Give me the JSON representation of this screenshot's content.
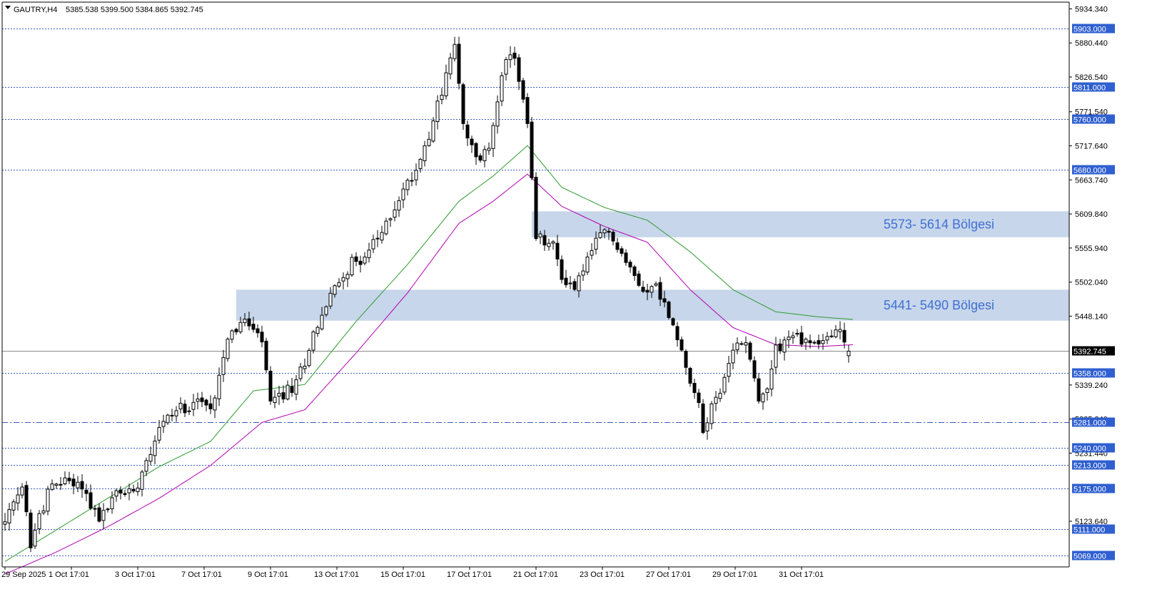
{
  "header": {
    "symbol_label": "GAUTRY,H4",
    "ohlc": "5385.538 5399.500 5384.865 5392.745"
  },
  "colors": {
    "background": "#ffffff",
    "bull_candle": "#ffffff",
    "bear_candle": "#000000",
    "ma_fast": "#2e9a2e",
    "ma_slow": "#b000b0",
    "level_line": "#3a5bbf",
    "level_label_bg": "#2f5fd0",
    "zone_fill": "#c7d6ea",
    "zone_text": "#3f6fd4",
    "price_line": "#8a8a8a",
    "current_label_bg": "#000000"
  },
  "chart_data": {
    "type": "candlestick",
    "symbol": "GAUTRY",
    "timeframe": "H4",
    "ylim": [
      5051.4,
      5945.0
    ],
    "y_ticks": [
      "5934.340",
      "5880.440",
      "5826.540",
      "5771.540",
      "5717.640",
      "5663.740",
      "5609.840",
      "5555.940",
      "5502.040",
      "5448.140",
      "5339.240",
      "5285.340",
      "5231.440",
      "5123.640"
    ],
    "x_ticks": [
      "29 Sep 2025",
      "1 Oct 17:01",
      "3 Oct 17:01",
      "7 Oct 17:01",
      "9 Oct 17:01",
      "13 Oct 17:01",
      "15 Oct 17:01",
      "17 Oct 17:01",
      "21 Oct 17:01",
      "23 Oct 17:01",
      "27 Oct 17:01",
      "29 Oct 17:01",
      "31 Oct 17:01"
    ],
    "levels": [
      {
        "value": "5903.000",
        "style": "dotted"
      },
      {
        "value": "5811.000",
        "style": "dotted"
      },
      {
        "value": "5760.000",
        "style": "dotted"
      },
      {
        "value": "5680.000",
        "style": "dotted"
      },
      {
        "value": "5358.000",
        "style": "dotted"
      },
      {
        "value": "5281.000",
        "style": "dashdot"
      },
      {
        "value": "5240.000",
        "style": "dotted"
      },
      {
        "value": "5213.000",
        "style": "dotted"
      },
      {
        "value": "5175.000",
        "style": "dotted"
      },
      {
        "value": "5111.000",
        "style": "dotted"
      },
      {
        "value": "5069.000",
        "style": "dotted"
      }
    ],
    "current_price": "5392.745",
    "zones": [
      {
        "label": "5573- 5614 Bölgesi",
        "low": 5573,
        "high": 5614,
        "start_index": 123
      },
      {
        "label": "5441- 5490 Bölgesi",
        "low": 5441,
        "high": 5490,
        "start_index": 54
      }
    ],
    "anchors": [
      [
        0,
        5120
      ],
      [
        4,
        5175
      ],
      [
        6,
        5090
      ],
      [
        10,
        5170
      ],
      [
        14,
        5190
      ],
      [
        18,
        5180
      ],
      [
        22,
        5125
      ],
      [
        26,
        5168
      ],
      [
        30,
        5172
      ],
      [
        34,
        5240
      ],
      [
        36,
        5275
      ],
      [
        40,
        5300
      ],
      [
        45,
        5318
      ],
      [
        48,
        5298
      ],
      [
        52,
        5420
      ],
      [
        56,
        5440
      ],
      [
        60,
        5408
      ],
      [
        62,
        5310
      ],
      [
        64,
        5320
      ],
      [
        68,
        5340
      ],
      [
        72,
        5420
      ],
      [
        76,
        5480
      ],
      [
        80,
        5525
      ],
      [
        84,
        5545
      ],
      [
        88,
        5578
      ],
      [
        92,
        5635
      ],
      [
        96,
        5680
      ],
      [
        100,
        5760
      ],
      [
        103,
        5828
      ],
      [
        105,
        5880
      ],
      [
        107,
        5745
      ],
      [
        110,
        5695
      ],
      [
        113,
        5712
      ],
      [
        116,
        5838
      ],
      [
        119,
        5860
      ],
      [
        122,
        5750
      ],
      [
        124,
        5572
      ],
      [
        128,
        5560
      ],
      [
        130,
        5510
      ],
      [
        133,
        5494
      ],
      [
        136,
        5538
      ],
      [
        140,
        5585
      ],
      [
        143,
        5560
      ],
      [
        146,
        5520
      ],
      [
        149,
        5492
      ],
      [
        152,
        5495
      ],
      [
        155,
        5450
      ],
      [
        158,
        5390
      ],
      [
        161,
        5335
      ],
      [
        163,
        5265
      ],
      [
        166,
        5325
      ],
      [
        168,
        5340
      ],
      [
        170,
        5395
      ],
      [
        172,
        5410
      ],
      [
        174,
        5390
      ],
      [
        176,
        5310
      ],
      [
        178,
        5340
      ],
      [
        180,
        5400
      ],
      [
        184,
        5418
      ],
      [
        188,
        5405
      ],
      [
        191,
        5410
      ],
      [
        195,
        5426
      ],
      [
        197,
        5395
      ]
    ],
    "ma_fast_anchors": [
      [
        0,
        5060
      ],
      [
        12,
        5110
      ],
      [
        24,
        5160
      ],
      [
        36,
        5210
      ],
      [
        48,
        5250
      ],
      [
        58,
        5330
      ],
      [
        70,
        5340
      ],
      [
        82,
        5440
      ],
      [
        94,
        5530
      ],
      [
        106,
        5630
      ],
      [
        114,
        5670
      ],
      [
        122,
        5718
      ],
      [
        130,
        5652
      ],
      [
        140,
        5620
      ],
      [
        150,
        5600
      ],
      [
        160,
        5550
      ],
      [
        170,
        5490
      ],
      [
        180,
        5455
      ],
      [
        190,
        5447
      ],
      [
        198,
        5443
      ]
    ],
    "ma_slow_anchors": [
      [
        0,
        5040
      ],
      [
        12,
        5075
      ],
      [
        24,
        5115
      ],
      [
        36,
        5160
      ],
      [
        48,
        5212
      ],
      [
        60,
        5280
      ],
      [
        70,
        5300
      ],
      [
        82,
        5390
      ],
      [
        94,
        5485
      ],
      [
        106,
        5595
      ],
      [
        114,
        5630
      ],
      [
        122,
        5673
      ],
      [
        130,
        5622
      ],
      [
        140,
        5590
      ],
      [
        150,
        5565
      ],
      [
        160,
        5490
      ],
      [
        170,
        5430
      ],
      [
        180,
        5403
      ],
      [
        190,
        5400
      ],
      [
        198,
        5403
      ]
    ],
    "ma_fast_end_index": 198,
    "ma_slow_end_index": 198
  }
}
